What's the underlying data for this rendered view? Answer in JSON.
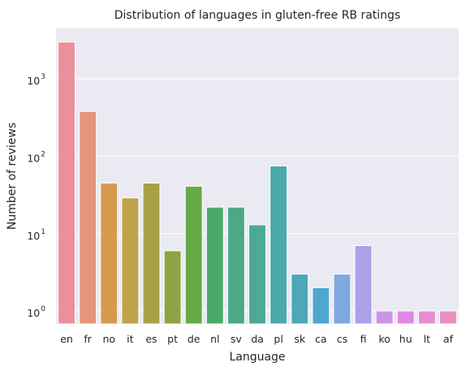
{
  "chart_data": {
    "type": "bar",
    "title": "Distribution of languages in gluten-free RB ratings",
    "xlabel": "Language",
    "ylabel": "Number of reviews",
    "yscale": "log",
    "ylim": [
      0.68,
      4500
    ],
    "yticks": [
      {
        "value": 1,
        "base": "10",
        "exp": "0"
      },
      {
        "value": 10,
        "base": "10",
        "exp": "1"
      },
      {
        "value": 100,
        "base": "10",
        "exp": "2"
      },
      {
        "value": 1000,
        "base": "10",
        "exp": "3"
      }
    ],
    "grid": true,
    "categories": [
      "en",
      "fr",
      "no",
      "it",
      "es",
      "pt",
      "de",
      "nl",
      "sv",
      "da",
      "pl",
      "sk",
      "ca",
      "cs",
      "fi",
      "ko",
      "hu",
      "lt",
      "af"
    ],
    "values": [
      3000,
      380,
      45,
      29,
      45,
      6,
      41,
      22,
      22,
      13,
      75,
      3,
      2,
      3,
      7,
      1,
      1,
      1,
      1
    ],
    "colors": [
      "#e9909c",
      "#e4957b",
      "#d69a4e",
      "#bfa04c",
      "#a8a144",
      "#8ca542",
      "#65aa47",
      "#4aab69",
      "#4ba984",
      "#4ca995",
      "#4aa9aa",
      "#4ca7b9",
      "#4fa6d0",
      "#7fa8e2",
      "#aba0e9",
      "#cb95e8",
      "#e187e4",
      "#e78dd1",
      "#e98fbf"
    ]
  }
}
